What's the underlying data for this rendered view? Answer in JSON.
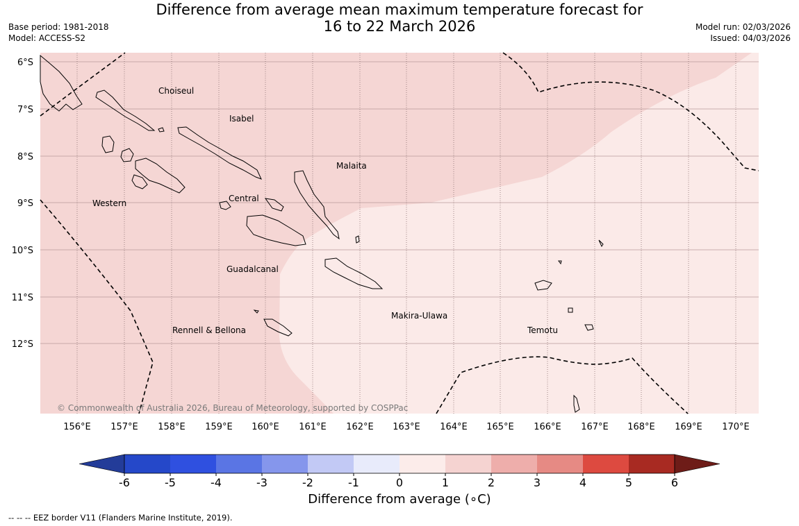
{
  "header": {
    "title_line1": "Difference from average mean maximum temperature forecast for",
    "title_line2": "16 to 22 March 2026",
    "base_period": "Base period: 1981-2018",
    "model": "Model: ACCESS-S2",
    "model_run": "Model run: 02/03/2026",
    "issued": "Issued: 04/03/2026"
  },
  "map": {
    "lat_labels": [
      "6°S",
      "7°S",
      "8°S",
      "9°S",
      "10°S",
      "11°S",
      "12°S"
    ],
    "lon_labels": [
      "156°E",
      "157°E",
      "158°E",
      "159°E",
      "160°E",
      "161°E",
      "162°E",
      "163°E",
      "164°E",
      "165°E",
      "166°E",
      "167°E",
      "168°E",
      "169°E",
      "170°E"
    ],
    "place_labels": [
      "Choiseul",
      "Isabel",
      "Malaita",
      "Western",
      "Central",
      "Guadalcanal",
      "Makira-Ulawa",
      "Temotu",
      "Rennell & Bellona"
    ],
    "credit": "© Commonwealth of Australia 2026, Bureau of Meteorology, supported by COSPPac",
    "fill_colors": {
      "anomaly_1_to_2": "#f5d6d4",
      "anomaly_0_to_1": "#fbeae8"
    },
    "gridlines": true
  },
  "colorbar": {
    "ticks": [
      "-6",
      "-5",
      "-4",
      "-3",
      "-2",
      "-1",
      "0",
      "1",
      "2",
      "3",
      "4",
      "5",
      "6"
    ],
    "colors": [
      "#233c99",
      "#2548c9",
      "#2f50e0",
      "#5a75e4",
      "#8596ec",
      "#c2c9f5",
      "#e8ebfb",
      "#fcecea",
      "#f5d3d1",
      "#eeaeab",
      "#e68a84",
      "#dd4a40",
      "#a82a22",
      "#6e1c18"
    ],
    "label": "Difference from average (∘C)"
  },
  "footnote": "--  --  -- EEZ border V11 (Flanders Marine Institute, 2019)."
}
